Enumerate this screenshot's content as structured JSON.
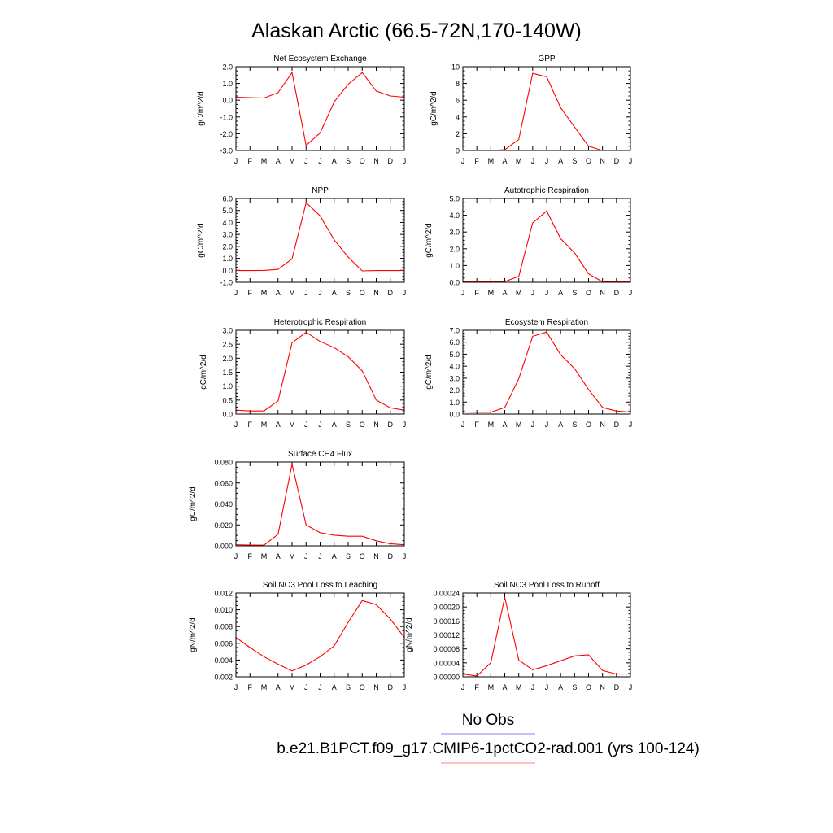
{
  "figure": {
    "title": "Alaskan Arctic (66.5-72N,170-140W)",
    "legend": {
      "items": [
        {
          "label": "No Obs",
          "color": "#8080ff"
        },
        {
          "label": "b.e21.B1PCT.f09_g17.CMIP6-1pctCO2-rad.001 (yrs 100-124)",
          "color": "#ff8080"
        }
      ]
    }
  },
  "chart_data": [
    {
      "type": "line",
      "title": "Net Ecosystem Exchange",
      "ylabel": "gC/m^2/d",
      "xlabel": "",
      "categories": [
        "J",
        "F",
        "M",
        "A",
        "M",
        "J",
        "J",
        "A",
        "S",
        "O",
        "N",
        "D",
        "J"
      ],
      "ylim": [
        -3.0,
        2.0
      ],
      "yticks": [
        "-3.0",
        "-2.0",
        "-1.0",
        "0.0",
        "1.0",
        "2.0"
      ],
      "series": [
        {
          "color": "#ff0000",
          "values": [
            0.18,
            0.15,
            0.13,
            0.45,
            1.65,
            -2.7,
            -1.95,
            -0.1,
            0.95,
            1.65,
            0.55,
            0.25,
            0.18
          ]
        }
      ]
    },
    {
      "type": "line",
      "title": "GPP",
      "ylabel": "gC/m^2/d",
      "xlabel": "",
      "categories": [
        "J",
        "F",
        "M",
        "A",
        "M",
        "J",
        "J",
        "A",
        "S",
        "O",
        "N",
        "D",
        "J"
      ],
      "ylim": [
        0,
        10
      ],
      "yticks": [
        "0",
        "2",
        "4",
        "6",
        "8",
        "10"
      ],
      "series": [
        {
          "color": "#ff0000",
          "values": [
            0.0,
            0.0,
            0.0,
            0.1,
            1.3,
            9.2,
            8.8,
            5.1,
            2.8,
            0.5,
            0.0,
            0.0,
            0.0
          ]
        }
      ]
    },
    {
      "type": "line",
      "title": "NPP",
      "ylabel": "gC/m^2/d",
      "xlabel": "",
      "categories": [
        "J",
        "F",
        "M",
        "A",
        "M",
        "J",
        "J",
        "A",
        "S",
        "O",
        "N",
        "D",
        "J"
      ],
      "ylim": [
        -1.0,
        6.0
      ],
      "yticks": [
        "-1.0",
        "0.0",
        "1.0",
        "2.0",
        "3.0",
        "4.0",
        "5.0",
        "6.0"
      ],
      "series": [
        {
          "color": "#ff0000",
          "values": [
            -0.02,
            -0.02,
            -0.01,
            0.08,
            0.95,
            5.65,
            4.55,
            2.55,
            1.1,
            -0.05,
            -0.02,
            -0.02,
            -0.02
          ]
        }
      ]
    },
    {
      "type": "line",
      "title": "Autotrophic Respiration",
      "ylabel": "gC/m^2/d",
      "xlabel": "",
      "categories": [
        "J",
        "F",
        "M",
        "A",
        "M",
        "J",
        "J",
        "A",
        "S",
        "O",
        "N",
        "D",
        "J"
      ],
      "ylim": [
        0,
        5.0
      ],
      "yticks": [
        "0.0",
        "1.0",
        "2.0",
        "3.0",
        "4.0",
        "5.0"
      ],
      "series": [
        {
          "color": "#ff0000",
          "values": [
            0.02,
            0.02,
            0.02,
            0.04,
            0.35,
            3.55,
            4.25,
            2.6,
            1.75,
            0.5,
            0.03,
            0.02,
            0.02
          ]
        }
      ]
    },
    {
      "type": "line",
      "title": "Heterotrophic Respiration",
      "ylabel": "gC/m^2/d",
      "xlabel": "",
      "categories": [
        "J",
        "F",
        "M",
        "A",
        "M",
        "J",
        "J",
        "A",
        "S",
        "O",
        "N",
        "D",
        "J"
      ],
      "ylim": [
        0,
        3.0
      ],
      "yticks": [
        "0.0",
        "0.5",
        "1.0",
        "1.5",
        "2.0",
        "2.5",
        "3.0"
      ],
      "series": [
        {
          "color": "#ff0000",
          "values": [
            0.14,
            0.11,
            0.11,
            0.47,
            2.55,
            2.93,
            2.6,
            2.38,
            2.05,
            1.55,
            0.5,
            0.22,
            0.14
          ]
        }
      ]
    },
    {
      "type": "line",
      "title": "Ecosystem Respiration",
      "ylabel": "gC/m^2/d",
      "xlabel": "",
      "categories": [
        "J",
        "F",
        "M",
        "A",
        "M",
        "J",
        "J",
        "A",
        "S",
        "O",
        "N",
        "D",
        "J"
      ],
      "ylim": [
        0,
        7.0
      ],
      "yticks": [
        "0.0",
        "1.0",
        "2.0",
        "3.0",
        "4.0",
        "5.0",
        "6.0",
        "7.0"
      ],
      "series": [
        {
          "color": "#ff0000",
          "values": [
            0.17,
            0.15,
            0.15,
            0.55,
            2.95,
            6.5,
            6.85,
            4.95,
            3.8,
            2.05,
            0.55,
            0.25,
            0.17
          ]
        }
      ]
    },
    {
      "type": "line",
      "title": "Surface CH4 Flux",
      "ylabel": "gC/m^2/d",
      "xlabel": "",
      "categories": [
        "J",
        "F",
        "M",
        "A",
        "M",
        "J",
        "J",
        "A",
        "S",
        "O",
        "N",
        "D",
        "J"
      ],
      "ylim": [
        0,
        0.08
      ],
      "yticks": [
        "0.000",
        "0.020",
        "0.040",
        "0.060",
        "0.080"
      ],
      "series": [
        {
          "color": "#ff0000",
          "values": [
            0.001,
            0.0008,
            0.0006,
            0.011,
            0.078,
            0.02,
            0.0125,
            0.0102,
            0.0092,
            0.0092,
            0.0048,
            0.002,
            0.001
          ]
        }
      ]
    },
    {
      "type": "line",
      "title": "Soil NO3 Pool Loss to Leaching",
      "ylabel": "gN/m^2/d",
      "xlabel": "",
      "categories": [
        "J",
        "F",
        "M",
        "A",
        "M",
        "J",
        "J",
        "A",
        "S",
        "O",
        "N",
        "D",
        "J"
      ],
      "ylim": [
        0.002,
        0.012
      ],
      "yticks": [
        "0.002",
        "0.004",
        "0.006",
        "0.008",
        "0.010",
        "0.012"
      ],
      "series": [
        {
          "color": "#ff0000",
          "values": [
            0.0067,
            0.0055,
            0.0044,
            0.0035,
            0.0027,
            0.0034,
            0.0044,
            0.0057,
            0.0085,
            0.0111,
            0.0106,
            0.0089,
            0.0067
          ]
        }
      ]
    },
    {
      "type": "line",
      "title": "Soil NO3 Pool Loss to Runoff",
      "ylabel": "gN/m^2/d",
      "xlabel": "",
      "categories": [
        "J",
        "F",
        "M",
        "A",
        "M",
        "J",
        "J",
        "A",
        "S",
        "O",
        "N",
        "D",
        "J"
      ],
      "ylim": [
        0,
        0.00024
      ],
      "yticks": [
        "0.00000",
        "0.00004",
        "0.00008",
        "0.00012",
        "0.00016",
        "0.00020",
        "0.00024"
      ],
      "series": [
        {
          "color": "#ff0000",
          "values": [
            8e-06,
            2e-06,
            4e-05,
            0.000228,
            4.8e-05,
            2e-05,
            3.2e-05,
            4.6e-05,
            6e-05,
            6.3e-05,
            1.8e-05,
            8e-06,
            8e-06
          ]
        }
      ]
    }
  ]
}
